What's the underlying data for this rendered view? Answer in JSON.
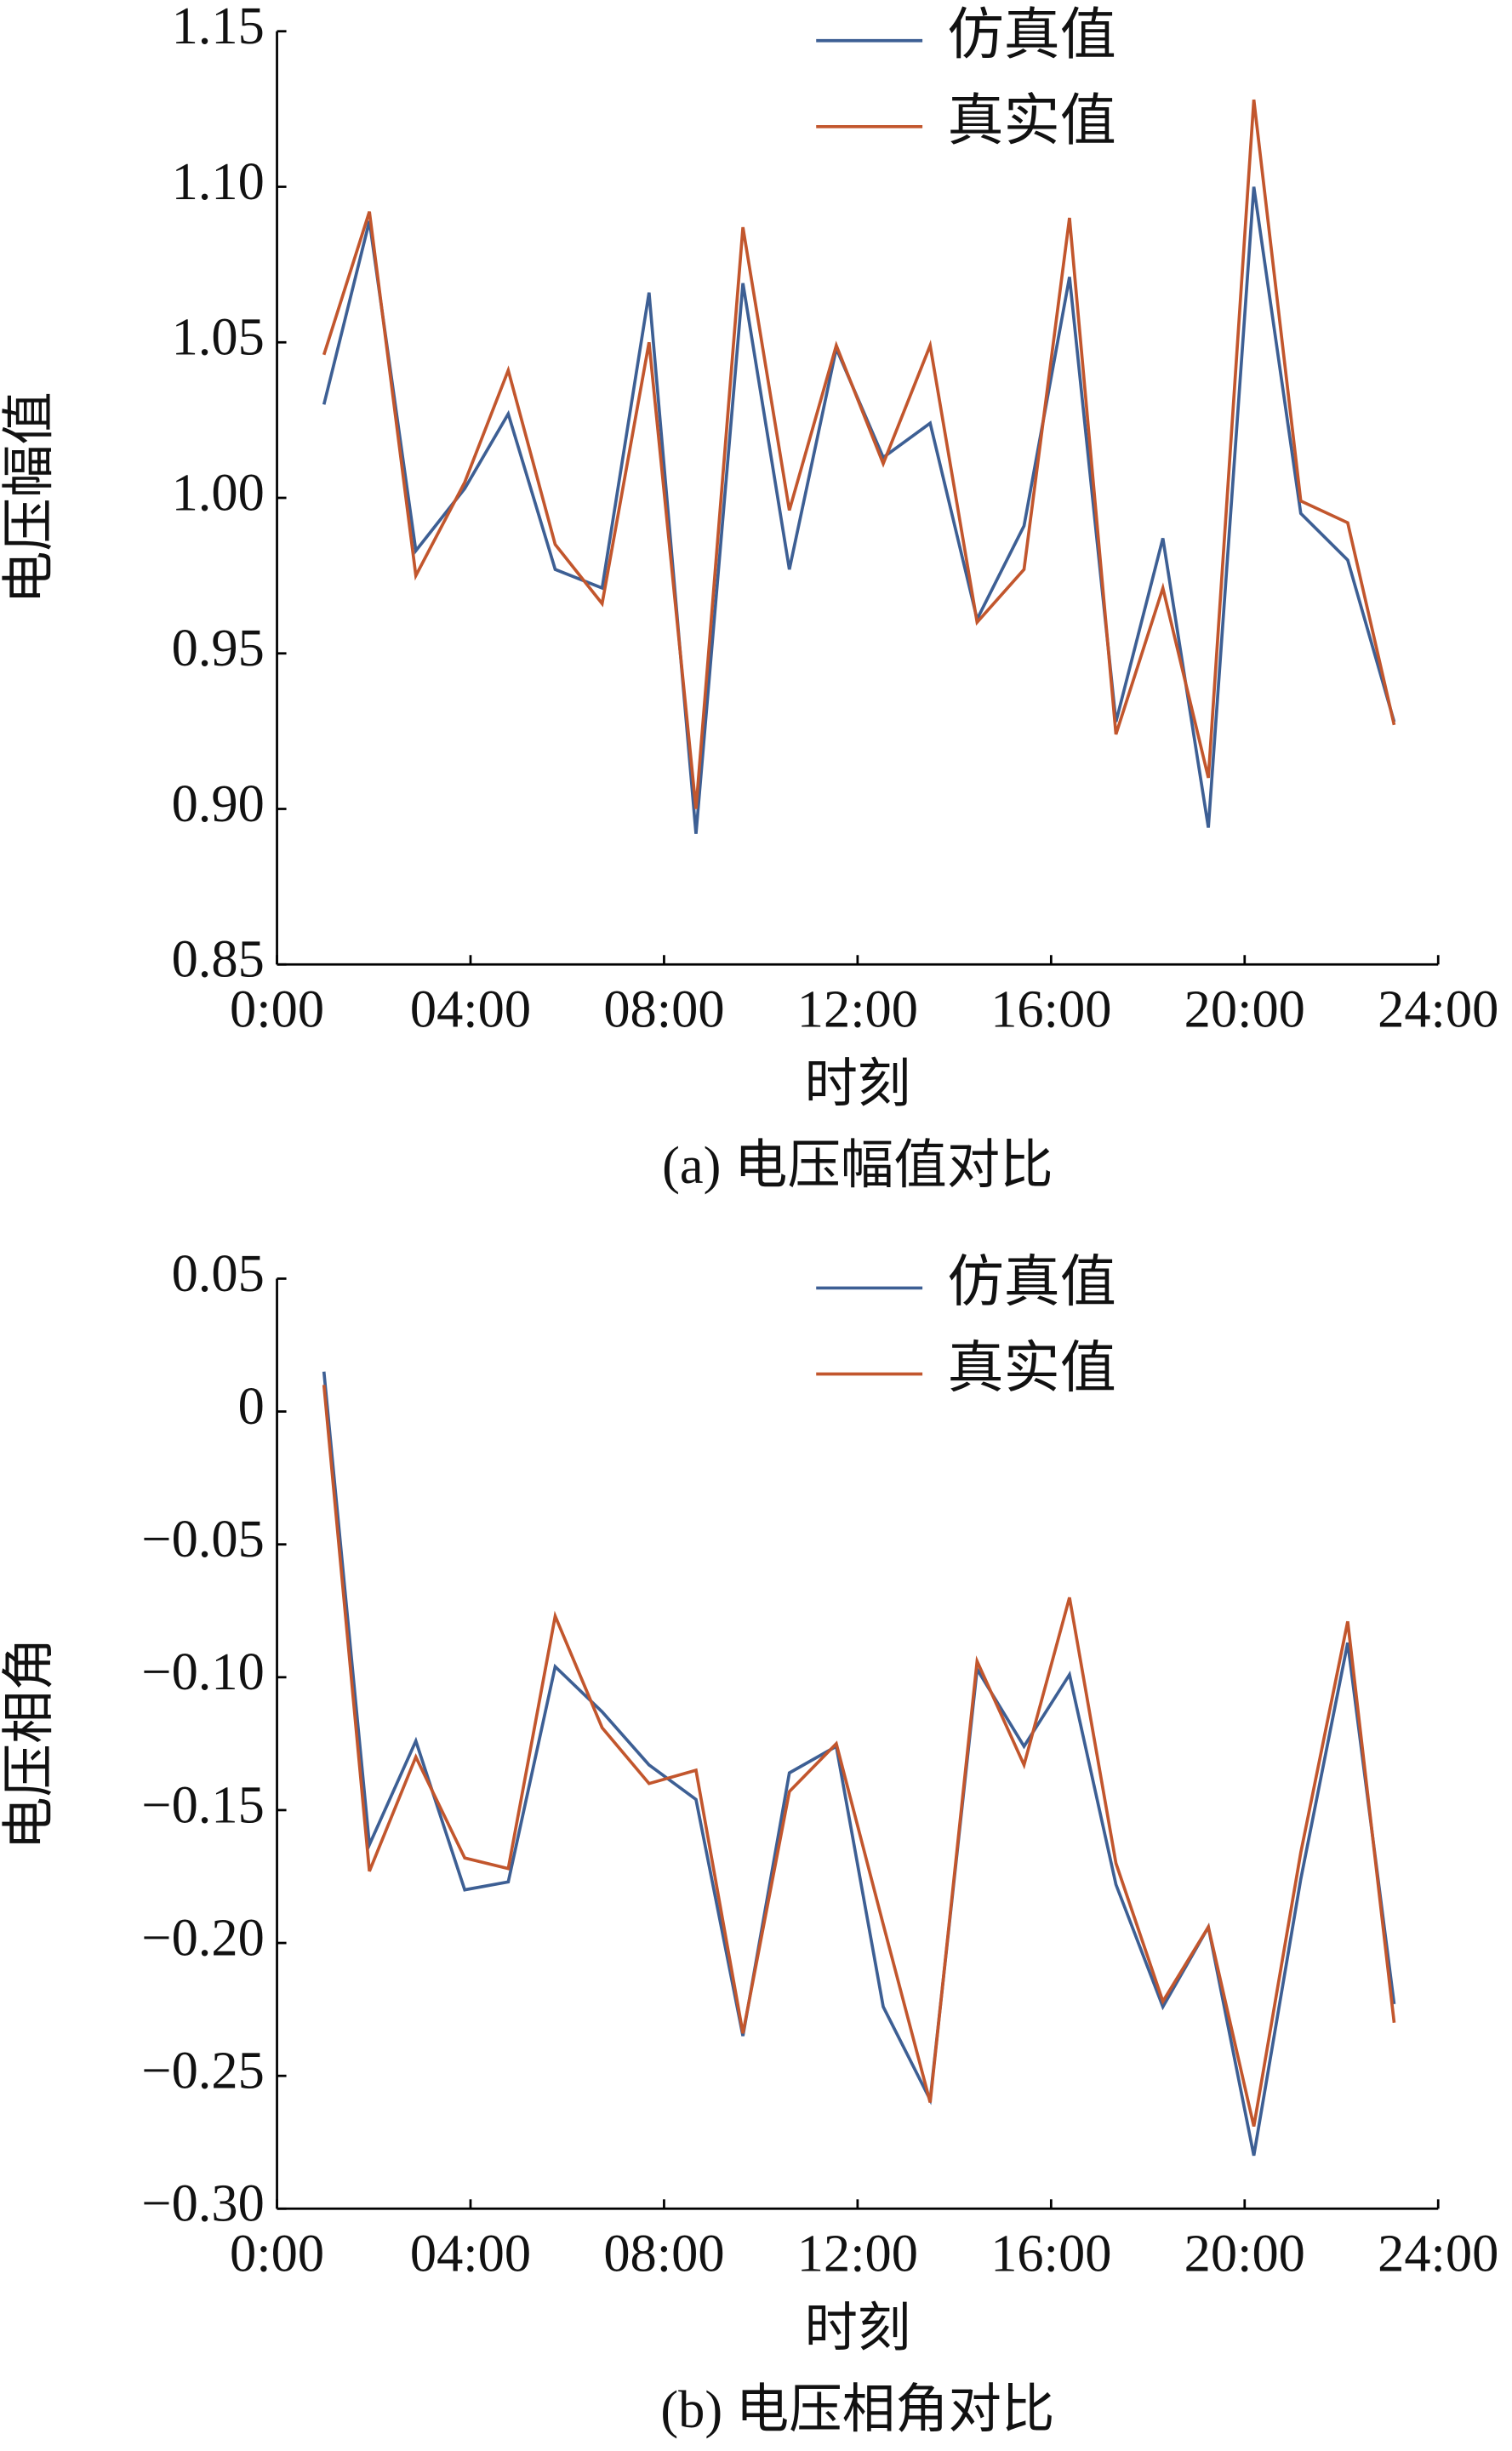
{
  "chart_data": [
    {
      "type": "line",
      "caption": "(a) 电压幅值对比",
      "xlabel": "时刻",
      "ylabel": "电压幅值",
      "x": [
        0.97,
        1.91,
        2.87,
        3.88,
        4.78,
        5.75,
        6.72,
        7.69,
        8.66,
        9.63,
        10.59,
        11.56,
        12.53,
        13.5,
        14.47,
        15.44,
        16.38,
        17.34,
        18.31,
        19.25,
        20.19,
        21.16,
        22.13,
        23.09
      ],
      "xlim": [
        0,
        24
      ],
      "xticks": [
        {
          "value": 0,
          "label": "0:00"
        },
        {
          "value": 4,
          "label": "04:00"
        },
        {
          "value": 8,
          "label": "08:00"
        },
        {
          "value": 12,
          "label": "12:00"
        },
        {
          "value": 16,
          "label": "16:00"
        },
        {
          "value": 20,
          "label": "20:00"
        },
        {
          "value": 24,
          "label": "24:00"
        }
      ],
      "ylim": [
        0.85,
        1.15
      ],
      "yticks": [
        {
          "value": 0.85,
          "label": "0.85"
        },
        {
          "value": 0.9,
          "label": "0.90"
        },
        {
          "value": 0.95,
          "label": "0.95"
        },
        {
          "value": 1.0,
          "label": "1.00"
        },
        {
          "value": 1.05,
          "label": "1.05"
        },
        {
          "value": 1.1,
          "label": "1.10"
        },
        {
          "value": 1.15,
          "label": "1.15"
        }
      ],
      "legend": "upper center",
      "series": [
        {
          "name": "仿真值",
          "color": "#3d5f94",
          "values": [
            1.03,
            1.089,
            0.983,
            1.003,
            1.027,
            0.977,
            0.971,
            1.066,
            0.892,
            1.069,
            0.977,
            1.048,
            1.013,
            1.024,
            0.961,
            0.991,
            1.071,
            0.928,
            0.987,
            0.894,
            1.1,
            0.995,
            0.98,
            0.928
          ]
        },
        {
          "name": "真实值",
          "color": "#c2562d",
          "values": [
            1.046,
            1.092,
            0.975,
            1.005,
            1.041,
            0.985,
            0.966,
            1.05,
            0.9,
            1.087,
            0.996,
            1.049,
            1.011,
            1.049,
            0.96,
            0.977,
            1.09,
            0.924,
            0.971,
            0.91,
            1.128,
            0.999,
            0.992,
            0.927
          ]
        }
      ]
    },
    {
      "type": "line",
      "caption": "(b) 电压相角对比",
      "xlabel": "时刻",
      "ylabel": "电压相角",
      "x": [
        0.97,
        1.91,
        2.87,
        3.88,
        4.78,
        5.75,
        6.72,
        7.69,
        8.66,
        9.63,
        10.59,
        11.56,
        12.53,
        13.5,
        14.47,
        15.44,
        16.38,
        17.34,
        18.31,
        19.25,
        20.19,
        21.16,
        22.13,
        23.09
      ],
      "xlim": [
        0,
        24
      ],
      "xticks": [
        {
          "value": 0,
          "label": "0:00"
        },
        {
          "value": 4,
          "label": "04:00"
        },
        {
          "value": 8,
          "label": "08:00"
        },
        {
          "value": 12,
          "label": "12:00"
        },
        {
          "value": 16,
          "label": "16:00"
        },
        {
          "value": 20,
          "label": "20:00"
        },
        {
          "value": 24,
          "label": "24:00"
        }
      ],
      "ylim": [
        -0.3,
        0.05
      ],
      "yticks": [
        {
          "value": -0.3,
          "label": "−0.30"
        },
        {
          "value": -0.25,
          "label": "−0.25"
        },
        {
          "value": -0.2,
          "label": "−0.20"
        },
        {
          "value": -0.15,
          "label": "−0.15"
        },
        {
          "value": -0.1,
          "label": "−0.10"
        },
        {
          "value": -0.05,
          "label": "−0.05"
        },
        0,
        {
          "value": 0.05,
          "label": "0.05"
        }
      ],
      "legend": "upper center",
      "series": [
        {
          "name": "仿真值",
          "color": "#3d5f94",
          "values": [
            0.015,
            -0.163,
            -0.124,
            -0.18,
            -0.177,
            -0.096,
            -0.113,
            -0.133,
            -0.146,
            -0.235,
            -0.136,
            -0.126,
            -0.224,
            -0.259,
            -0.097,
            -0.126,
            -0.099,
            -0.178,
            -0.224,
            -0.194,
            -0.28,
            -0.176,
            -0.087,
            -0.223
          ]
        },
        {
          "name": "真实值",
          "color": "#c2562d",
          "values": [
            0.01,
            -0.173,
            -0.13,
            -0.168,
            -0.172,
            -0.077,
            -0.119,
            -0.14,
            -0.135,
            -0.234,
            -0.143,
            -0.125,
            -0.193,
            -0.26,
            -0.094,
            -0.133,
            -0.07,
            -0.17,
            -0.222,
            -0.194,
            -0.269,
            -0.166,
            -0.079,
            -0.23
          ]
        }
      ]
    }
  ]
}
